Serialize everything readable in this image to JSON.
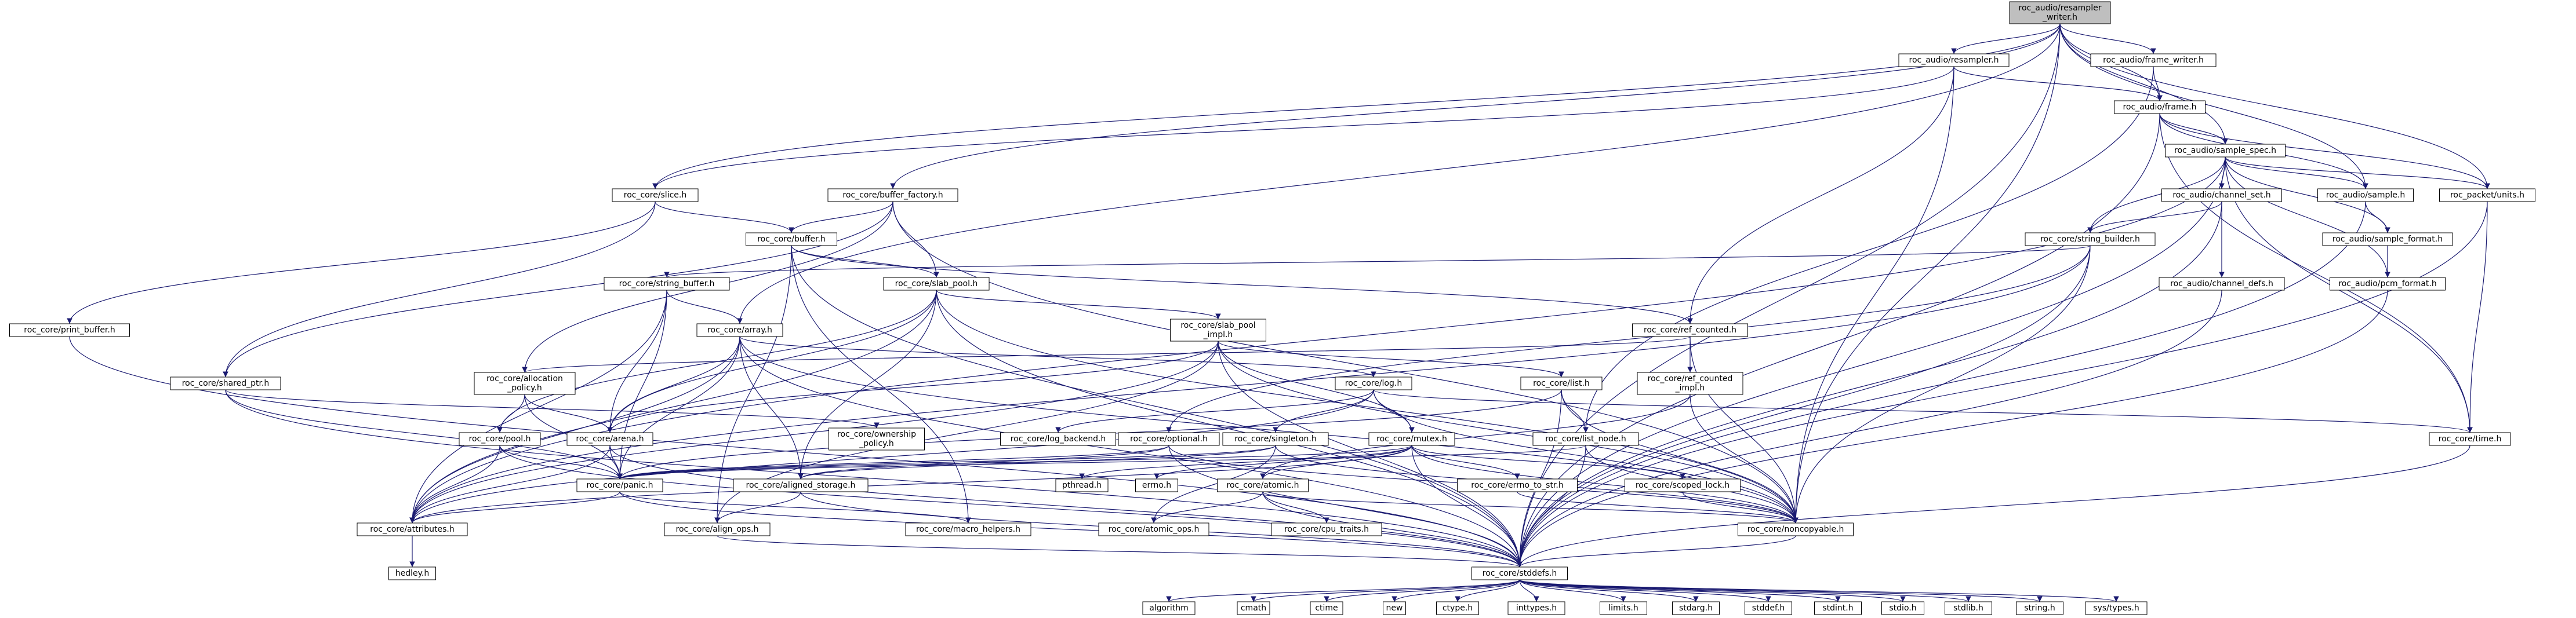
{
  "graph": {
    "colors": {
      "edge": "#191970",
      "root_fill": "#bfbfbf",
      "node_fill": "#ffffff",
      "node_border": "#000000",
      "system_border": "#bfbfbf",
      "system_text": "#7f7f7f"
    },
    "nodes": [
      {
        "id": "root",
        "lines": [
          "roc_audio/resampler",
          "_writer.h"
        ],
        "kind": "root"
      },
      {
        "id": "resampler",
        "lines": [
          "roc_audio/resampler.h"
        ]
      },
      {
        "id": "frame_writer",
        "lines": [
          "roc_audio/frame_writer.h"
        ]
      },
      {
        "id": "frame",
        "lines": [
          "roc_audio/frame.h"
        ]
      },
      {
        "id": "sample_spec",
        "lines": [
          "roc_audio/sample_spec.h"
        ]
      },
      {
        "id": "slice",
        "lines": [
          "roc_core/slice.h"
        ]
      },
      {
        "id": "buffer_factory",
        "lines": [
          "roc_core/buffer_factory.h"
        ]
      },
      {
        "id": "channel_set",
        "lines": [
          "roc_audio/channel_set.h"
        ]
      },
      {
        "id": "sample",
        "lines": [
          "roc_audio/sample.h"
        ]
      },
      {
        "id": "units",
        "lines": [
          "roc_packet/units.h"
        ]
      },
      {
        "id": "buffer",
        "lines": [
          "roc_core/buffer.h"
        ]
      },
      {
        "id": "string_builder",
        "lines": [
          "roc_core/string_builder.h"
        ]
      },
      {
        "id": "sample_format",
        "lines": [
          "roc_audio/sample_format.h"
        ]
      },
      {
        "id": "string_buffer",
        "lines": [
          "roc_core/string_buffer.h"
        ]
      },
      {
        "id": "slab_pool",
        "lines": [
          "roc_core/slab_pool.h"
        ]
      },
      {
        "id": "channel_defs",
        "lines": [
          "roc_audio/channel_defs.h"
        ]
      },
      {
        "id": "pcm_format",
        "lines": [
          "roc_audio/pcm_format.h"
        ]
      },
      {
        "id": "print_buffer",
        "lines": [
          "roc_core/print_buffer.h"
        ]
      },
      {
        "id": "array",
        "lines": [
          "roc_core/array.h"
        ]
      },
      {
        "id": "slab_pool_impl",
        "lines": [
          "roc_core/slab_pool",
          "_impl.h"
        ]
      },
      {
        "id": "ref_counted",
        "lines": [
          "roc_core/ref_counted.h"
        ]
      },
      {
        "id": "shared_ptr",
        "lines": [
          "roc_core/shared_ptr.h"
        ]
      },
      {
        "id": "allocation_policy",
        "lines": [
          "roc_core/allocation",
          "_policy.h"
        ]
      },
      {
        "id": "log",
        "lines": [
          "roc_core/log.h"
        ]
      },
      {
        "id": "list",
        "lines": [
          "roc_core/list.h"
        ]
      },
      {
        "id": "ref_counted_impl",
        "lines": [
          "roc_core/ref_counted",
          "_impl.h"
        ]
      },
      {
        "id": "pool",
        "lines": [
          "roc_core/pool.h"
        ]
      },
      {
        "id": "arena",
        "lines": [
          "roc_core/arena.h"
        ]
      },
      {
        "id": "ownership_policy",
        "lines": [
          "roc_core/ownership",
          "_policy.h"
        ]
      },
      {
        "id": "log_backend",
        "lines": [
          "roc_core/log_backend.h"
        ],
        "kind": "system"
      },
      {
        "id": "optional",
        "lines": [
          "roc_core/optional.h"
        ]
      },
      {
        "id": "singleton",
        "lines": [
          "roc_core/singleton.h"
        ]
      },
      {
        "id": "mutex",
        "lines": [
          "roc_core/mutex.h"
        ]
      },
      {
        "id": "list_node",
        "lines": [
          "roc_core/list_node.h"
        ]
      },
      {
        "id": "time",
        "lines": [
          "roc_core/time.h"
        ]
      },
      {
        "id": "panic",
        "lines": [
          "roc_core/panic.h"
        ]
      },
      {
        "id": "aligned_storage",
        "lines": [
          "roc_core/aligned_storage.h"
        ]
      },
      {
        "id": "pthread",
        "lines": [
          "pthread.h"
        ],
        "kind": "system"
      },
      {
        "id": "errno",
        "lines": [
          "errno.h"
        ],
        "kind": "system"
      },
      {
        "id": "atomic",
        "lines": [
          "roc_core/atomic.h"
        ]
      },
      {
        "id": "errno_to_str",
        "lines": [
          "roc_core/errno_to_str.h"
        ]
      },
      {
        "id": "scoped_lock",
        "lines": [
          "roc_core/scoped_lock.h"
        ]
      },
      {
        "id": "attributes",
        "lines": [
          "roc_core/attributes.h"
        ]
      },
      {
        "id": "align_ops",
        "lines": [
          "roc_core/align_ops.h"
        ]
      },
      {
        "id": "macro_helpers",
        "lines": [
          "roc_core/macro_helpers.h"
        ]
      },
      {
        "id": "atomic_ops",
        "lines": [
          "roc_core/atomic_ops.h"
        ]
      },
      {
        "id": "cpu_traits",
        "lines": [
          "roc_core/cpu_traits.h"
        ],
        "kind": "system"
      },
      {
        "id": "noncopyable",
        "lines": [
          "roc_core/noncopyable.h"
        ]
      },
      {
        "id": "hedley",
        "lines": [
          "hedley.h"
        ],
        "kind": "system"
      },
      {
        "id": "stddefs",
        "lines": [
          "roc_core/stddefs.h"
        ]
      },
      {
        "id": "algorithm",
        "lines": [
          "algorithm"
        ],
        "kind": "system"
      },
      {
        "id": "cmath",
        "lines": [
          "cmath"
        ],
        "kind": "system"
      },
      {
        "id": "ctime",
        "lines": [
          "ctime"
        ],
        "kind": "system"
      },
      {
        "id": "new",
        "lines": [
          "new"
        ],
        "kind": "system"
      },
      {
        "id": "ctype",
        "lines": [
          "ctype.h"
        ],
        "kind": "system"
      },
      {
        "id": "inttypes",
        "lines": [
          "inttypes.h"
        ],
        "kind": "system"
      },
      {
        "id": "limits",
        "lines": [
          "limits.h"
        ],
        "kind": "system"
      },
      {
        "id": "stdarg",
        "lines": [
          "stdarg.h"
        ],
        "kind": "system"
      },
      {
        "id": "stddef",
        "lines": [
          "stddef.h"
        ],
        "kind": "system"
      },
      {
        "id": "stdint",
        "lines": [
          "stdint.h"
        ],
        "kind": "system"
      },
      {
        "id": "stdio",
        "lines": [
          "stdio.h"
        ],
        "kind": "system"
      },
      {
        "id": "stdlib",
        "lines": [
          "stdlib.h"
        ],
        "kind": "system"
      },
      {
        "id": "string",
        "lines": [
          "string.h"
        ],
        "kind": "system"
      },
      {
        "id": "sys_types",
        "lines": [
          "sys/types.h"
        ],
        "kind": "system"
      }
    ],
    "edges": [
      [
        "root",
        "resampler"
      ],
      [
        "root",
        "frame_writer"
      ],
      [
        "root",
        "frame"
      ],
      [
        "root",
        "sample_spec"
      ],
      [
        "root",
        "slice"
      ],
      [
        "root",
        "buffer_factory"
      ],
      [
        "root",
        "array"
      ],
      [
        "root",
        "sample"
      ],
      [
        "root",
        "units"
      ],
      [
        "root",
        "noncopyable"
      ],
      [
        "root",
        "stddefs"
      ],
      [
        "resampler",
        "frame"
      ],
      [
        "resampler",
        "slice"
      ],
      [
        "resampler",
        "ref_counted"
      ],
      [
        "resampler",
        "noncopyable"
      ],
      [
        "frame_writer",
        "frame"
      ],
      [
        "frame_writer",
        "list_node"
      ],
      [
        "frame",
        "sample_spec"
      ],
      [
        "frame",
        "sample"
      ],
      [
        "frame",
        "units"
      ],
      [
        "frame",
        "time"
      ],
      [
        "frame",
        "stddefs"
      ],
      [
        "sample_spec",
        "channel_set"
      ],
      [
        "sample_spec",
        "sample"
      ],
      [
        "sample_spec",
        "sample_format"
      ],
      [
        "sample_spec",
        "pcm_format"
      ],
      [
        "sample_spec",
        "units"
      ],
      [
        "sample_spec",
        "time"
      ],
      [
        "sample_spec",
        "string_builder"
      ],
      [
        "sample_spec",
        "attributes"
      ],
      [
        "sample_spec",
        "stddefs"
      ],
      [
        "slice",
        "buffer"
      ],
      [
        "slice",
        "shared_ptr"
      ],
      [
        "slice",
        "print_buffer"
      ],
      [
        "buffer_factory",
        "buffer"
      ],
      [
        "buffer_factory",
        "slab_pool"
      ],
      [
        "buffer_factory",
        "allocation_policy"
      ],
      [
        "buffer_factory",
        "shared_ptr"
      ],
      [
        "buffer_factory",
        "noncopyable"
      ],
      [
        "channel_set",
        "channel_defs"
      ],
      [
        "channel_set",
        "string_builder"
      ],
      [
        "channel_set",
        "stddefs"
      ],
      [
        "sample",
        "sample_format"
      ],
      [
        "sample",
        "stddefs"
      ],
      [
        "units",
        "time"
      ],
      [
        "units",
        "stddefs"
      ],
      [
        "buffer",
        "slab_pool"
      ],
      [
        "buffer",
        "ref_counted"
      ],
      [
        "buffer",
        "macro_helpers"
      ],
      [
        "buffer",
        "align_ops"
      ],
      [
        "buffer",
        "stddefs"
      ],
      [
        "string_builder",
        "string_buffer"
      ],
      [
        "string_builder",
        "optional"
      ],
      [
        "string_builder",
        "attributes"
      ],
      [
        "string_builder",
        "noncopyable"
      ],
      [
        "string_builder",
        "stddefs"
      ],
      [
        "sample_format",
        "pcm_format"
      ],
      [
        "string_buffer",
        "array"
      ],
      [
        "string_buffer",
        "arena"
      ],
      [
        "string_buffer",
        "panic"
      ],
      [
        "string_buffer",
        "attributes"
      ],
      [
        "slab_pool",
        "slab_pool_impl"
      ],
      [
        "slab_pool",
        "arena"
      ],
      [
        "slab_pool",
        "pool"
      ],
      [
        "slab_pool",
        "aligned_storage"
      ],
      [
        "slab_pool",
        "attributes"
      ],
      [
        "slab_pool",
        "noncopyable"
      ],
      [
        "slab_pool",
        "stddefs"
      ],
      [
        "channel_defs",
        "stddefs"
      ],
      [
        "pcm_format",
        "stddefs"
      ],
      [
        "print_buffer",
        "stddefs"
      ],
      [
        "array",
        "arena"
      ],
      [
        "array",
        "log"
      ],
      [
        "array",
        "panic"
      ],
      [
        "array",
        "aligned_storage"
      ],
      [
        "array",
        "attributes"
      ],
      [
        "array",
        "noncopyable"
      ],
      [
        "array",
        "stddefs"
      ],
      [
        "slab_pool_impl",
        "list"
      ],
      [
        "slab_pool_impl",
        "mutex"
      ],
      [
        "slab_pool_impl",
        "arena"
      ],
      [
        "slab_pool_impl",
        "align_ops"
      ],
      [
        "slab_pool_impl",
        "attributes"
      ],
      [
        "slab_pool_impl",
        "noncopyable"
      ],
      [
        "slab_pool_impl",
        "stddefs"
      ],
      [
        "ref_counted",
        "ref_counted_impl"
      ],
      [
        "ref_counted",
        "allocation_policy"
      ],
      [
        "ref_counted",
        "noncopyable"
      ],
      [
        "shared_ptr",
        "ownership_policy"
      ],
      [
        "shared_ptr",
        "panic"
      ],
      [
        "shared_ptr",
        "stddefs"
      ],
      [
        "allocation_policy",
        "pool"
      ],
      [
        "allocation_policy",
        "arena"
      ],
      [
        "allocation_policy",
        "panic"
      ],
      [
        "log",
        "log_backend"
      ],
      [
        "log",
        "singleton"
      ],
      [
        "log",
        "mutex"
      ],
      [
        "log",
        "time"
      ],
      [
        "log",
        "attributes"
      ],
      [
        "log",
        "noncopyable"
      ],
      [
        "list",
        "list_node"
      ],
      [
        "list",
        "panic"
      ],
      [
        "list",
        "noncopyable"
      ],
      [
        "list",
        "stddefs"
      ],
      [
        "ref_counted_impl",
        "atomic"
      ],
      [
        "ref_counted_impl",
        "noncopyable"
      ],
      [
        "pool",
        "panic"
      ],
      [
        "pool",
        "attributes"
      ],
      [
        "pool",
        "stddefs"
      ],
      [
        "arena",
        "panic"
      ],
      [
        "arena",
        "attributes"
      ],
      [
        "arena",
        "stddefs"
      ],
      [
        "optional",
        "aligned_storage"
      ],
      [
        "optional",
        "panic"
      ],
      [
        "optional",
        "noncopyable"
      ],
      [
        "optional",
        "stddefs"
      ],
      [
        "singleton",
        "aligned_storage"
      ],
      [
        "singleton",
        "atomic_ops"
      ],
      [
        "singleton",
        "panic"
      ],
      [
        "singleton",
        "noncopyable"
      ],
      [
        "mutex",
        "atomic"
      ],
      [
        "mutex",
        "errno_to_str"
      ],
      [
        "mutex",
        "scoped_lock"
      ],
      [
        "mutex",
        "panic"
      ],
      [
        "mutex",
        "pthread"
      ],
      [
        "mutex",
        "errno"
      ],
      [
        "mutex",
        "attributes"
      ],
      [
        "mutex",
        "noncopyable"
      ],
      [
        "mutex",
        "stddefs"
      ],
      [
        "list_node",
        "panic"
      ],
      [
        "list_node",
        "noncopyable"
      ],
      [
        "list_node",
        "stddefs"
      ],
      [
        "time",
        "stddefs"
      ],
      [
        "panic",
        "attributes"
      ],
      [
        "panic",
        "macro_helpers"
      ],
      [
        "panic",
        "stddefs"
      ],
      [
        "aligned_storage",
        "align_ops"
      ],
      [
        "aligned_storage",
        "stddefs"
      ],
      [
        "atomic",
        "atomic_ops"
      ],
      [
        "atomic",
        "cpu_traits"
      ],
      [
        "atomic",
        "noncopyable"
      ],
      [
        "atomic",
        "stddefs"
      ],
      [
        "errno_to_str",
        "noncopyable"
      ],
      [
        "scoped_lock",
        "noncopyable"
      ],
      [
        "attributes",
        "hedley"
      ],
      [
        "align_ops",
        "stddefs"
      ],
      [
        "noncopyable",
        "stddefs"
      ],
      [
        "stddefs",
        "algorithm"
      ],
      [
        "stddefs",
        "cmath"
      ],
      [
        "stddefs",
        "ctime"
      ],
      [
        "stddefs",
        "new"
      ],
      [
        "stddefs",
        "ctype"
      ],
      [
        "stddefs",
        "inttypes"
      ],
      [
        "stddefs",
        "limits"
      ],
      [
        "stddefs",
        "stdarg"
      ],
      [
        "stddefs",
        "stddef"
      ],
      [
        "stddefs",
        "stdint"
      ],
      [
        "stddefs",
        "stdio"
      ],
      [
        "stddefs",
        "stdlib"
      ],
      [
        "stddefs",
        "string"
      ],
      [
        "stddefs",
        "sys_types"
      ]
    ]
  }
}
